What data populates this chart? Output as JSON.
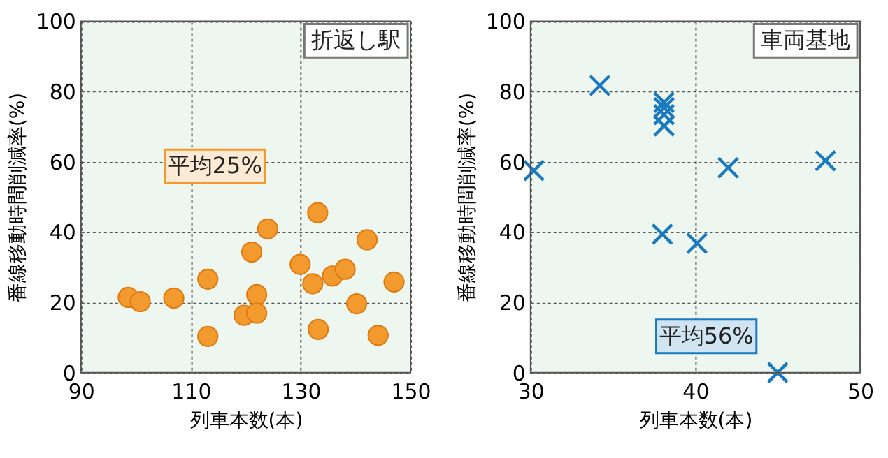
{
  "chart_data": [
    {
      "type": "scatter",
      "xlabel": "列車本数(本)",
      "ylabel": "番線移動時間削減率(%)",
      "annotations": [
        "折返し駅",
        "平均25%"
      ],
      "xlim": [
        90,
        150
      ],
      "xticks": [
        90,
        110,
        130,
        150
      ],
      "ylim": [
        0,
        100
      ],
      "yticks": [
        0,
        20,
        40,
        60,
        80,
        100
      ],
      "grid": true,
      "marker": "circle",
      "series": [
        {
          "color": "#f39a2e",
          "x": [
            98.6,
            100.8,
            106.9,
            113.1,
            113.1,
            119.7,
            121.1,
            122.0,
            122.0,
            124.0,
            129.9,
            132.2,
            133.1,
            133.2,
            135.8,
            138.1,
            140.2,
            142.1,
            144.1,
            147.0
          ],
          "values": [
            21.4,
            20.2,
            21.2,
            26.6,
            10.3,
            16.3,
            34.3,
            22.2,
            16.9,
            40.9,
            30.8,
            25.3,
            45.5,
            12.3,
            27.5,
            29.4,
            19.6,
            37.8,
            10.6,
            25.8
          ]
        }
      ]
    },
    {
      "type": "scatter",
      "xlabel": "列車本数(本)",
      "ylabel": "番線移動時間削減率(%)",
      "annotations": [
        "車両基地",
        "平均56%"
      ],
      "xlim": [
        30,
        50
      ],
      "xticks": [
        30,
        40,
        50
      ],
      "ylim": [
        0,
        100
      ],
      "yticks": [
        0,
        20,
        40,
        60,
        80,
        100
      ],
      "grid": true,
      "marker": "cross",
      "series": [
        {
          "color": "#1a7abf",
          "x": [
            30.2,
            34.2,
            38.1,
            38.1,
            38.1,
            38.1,
            38.0,
            40.1,
            42.0,
            45.0,
            47.9
          ],
          "values": [
            57.5,
            81.7,
            76.9,
            75.4,
            73.4,
            70.2,
            39.4,
            36.8,
            58.3,
            0,
            60.3
          ]
        }
      ]
    }
  ]
}
